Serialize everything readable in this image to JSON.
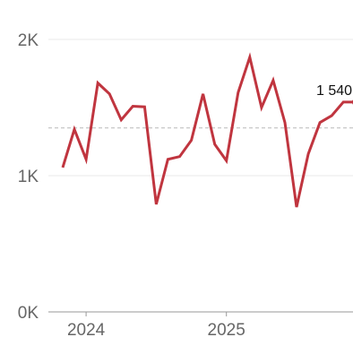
{
  "colors": {
    "line": "#c0353f",
    "gridline": "#e8e8e8",
    "reference_line": "#b8b8b8",
    "axis": "#999999",
    "tick_text": "#666666",
    "label_text": "#111111",
    "background": "#ffffff"
  },
  "chart_data": {
    "type": "line",
    "title": "",
    "xlabel": "",
    "ylabel": "",
    "x_ticks": [
      "2024",
      "2025"
    ],
    "y_ticks": [
      "0K",
      "1K",
      "2K"
    ],
    "ylim": [
      0,
      2000
    ],
    "grid": true,
    "legend": "none",
    "reference_line": 1350,
    "end_label": "1 540",
    "series": [
      {
        "x": [
          "2023-11",
          "2023-12",
          "2024-01",
          "2024-02",
          "2024-03",
          "2024-04",
          "2024-05",
          "2024-06",
          "2024-07",
          "2024-08",
          "2024-09",
          "2024-10",
          "2024-11",
          "2024-12",
          "2025-01",
          "2025-02",
          "2025-03",
          "2025-04",
          "2025-05",
          "2025-06",
          "2025-07",
          "2025-08",
          "2025-09",
          "2025-10",
          "2025-11",
          "2025-12"
        ],
        "values": [
          1060,
          1340,
          1120,
          1680,
          1600,
          1410,
          1510,
          1505,
          790,
          1120,
          1140,
          1260,
          1600,
          1230,
          1110,
          1610,
          1870,
          1500,
          1700,
          1390,
          770,
          1160,
          1390,
          1440,
          1540,
          1540
        ]
      }
    ]
  }
}
